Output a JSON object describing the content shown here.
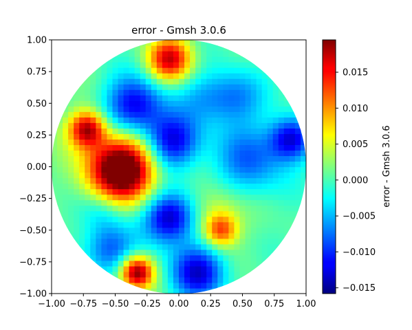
{
  "chart_data": {
    "type": "heatmap",
    "title": "error - Gmsh 3.0.6",
    "xlim": [
      -1.0,
      1.0
    ],
    "ylim": [
      -1.0,
      1.0
    ],
    "x_ticks": [
      "−1.00",
      "−0.75",
      "−0.50",
      "−0.25",
      "0.00",
      "0.25",
      "0.50",
      "0.75",
      "1.00"
    ],
    "y_ticks": [
      "1.00",
      "0.75",
      "0.50",
      "0.25",
      "0.00",
      "−0.25",
      "−0.50",
      "−0.75",
      "−1.00"
    ],
    "domain": "unit disk",
    "colormap": "jet",
    "colorbar": {
      "label": "error - Gmsh 3.0.6",
      "vmin": -0.0158,
      "vmax": 0.0195,
      "ticks": [
        {
          "value": 0.015,
          "label": "0.015"
        },
        {
          "value": 0.01,
          "label": "0.010"
        },
        {
          "value": 0.005,
          "label": "0.005"
        },
        {
          "value": 0.0,
          "label": "0.000"
        },
        {
          "value": -0.005,
          "label": "−0.005"
        },
        {
          "value": -0.01,
          "label": "−0.010"
        },
        {
          "value": -0.015,
          "label": "−0.015"
        }
      ]
    },
    "features": [
      {
        "x": -0.42,
        "y": -0.02,
        "value": 0.019,
        "spread": 0.17
      },
      {
        "x": -0.33,
        "y": -0.83,
        "value": 0.019,
        "spread": 0.09
      },
      {
        "x": -0.72,
        "y": 0.3,
        "value": 0.017,
        "spread": 0.1
      },
      {
        "x": -0.07,
        "y": 0.85,
        "value": 0.016,
        "spread": 0.12
      },
      {
        "x": 0.33,
        "y": -0.5,
        "value": 0.011,
        "spread": 0.09
      },
      {
        "x": -0.55,
        "y": 0.0,
        "value": 0.007,
        "spread": 0.2
      },
      {
        "x": 0.3,
        "y": -0.35,
        "value": 0.005,
        "spread": 0.15
      },
      {
        "x": -0.07,
        "y": -0.4,
        "value": -0.015,
        "spread": 0.14
      },
      {
        "x": 0.15,
        "y": -0.83,
        "value": -0.013,
        "spread": 0.15
      },
      {
        "x": -0.35,
        "y": 0.48,
        "value": -0.013,
        "spread": 0.16
      },
      {
        "x": -0.05,
        "y": 0.2,
        "value": -0.013,
        "spread": 0.15
      },
      {
        "x": 0.88,
        "y": 0.22,
        "value": -0.013,
        "spread": 0.12
      },
      {
        "x": 0.55,
        "y": 0.05,
        "value": -0.008,
        "spread": 0.2
      },
      {
        "x": -0.55,
        "y": -0.65,
        "value": -0.009,
        "spread": 0.14
      },
      {
        "x": 0.45,
        "y": 0.55,
        "value": -0.007,
        "spread": 0.15
      },
      {
        "x": 0.2,
        "y": 0.55,
        "value": -0.005,
        "spread": 0.15
      },
      {
        "x": -0.6,
        "y": -0.35,
        "value": -0.004,
        "spread": 0.12
      }
    ]
  }
}
